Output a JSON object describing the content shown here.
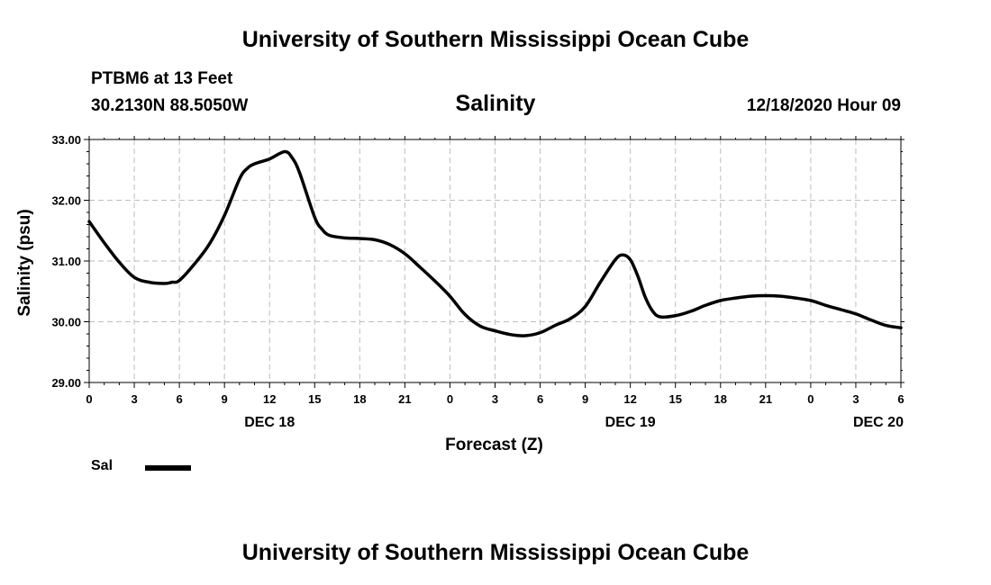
{
  "header": {
    "title": "University of Southern Mississippi Ocean Cube",
    "station": "PTBM6 at 13 Feet",
    "coords": "30.2130N 88.5050W",
    "plot_title": "Salinity",
    "timestamp": "12/18/2020 Hour 09"
  },
  "footer": {
    "title": "University of Southern Mississippi Ocean Cube"
  },
  "legend": {
    "label": "Sal"
  },
  "colors": {
    "line": "#000000",
    "grid": "#bdbdbd"
  },
  "chart_data": {
    "type": "line",
    "title": "Salinity",
    "xlabel": "Forecast (Z)",
    "ylabel": "Salinity (psu)",
    "xlim": [
      0,
      54
    ],
    "ylim": [
      29,
      33
    ],
    "grid": true,
    "x_ticks": [
      0,
      3,
      6,
      9,
      12,
      15,
      18,
      21,
      24,
      27,
      30,
      33,
      36,
      39,
      42,
      45,
      48,
      51,
      54
    ],
    "x_tick_labels": [
      "0",
      "3",
      "6",
      "9",
      "12",
      "15",
      "18",
      "21",
      "0",
      "3",
      "6",
      "9",
      "12",
      "15",
      "18",
      "21",
      "0",
      "3",
      "6"
    ],
    "y_ticks": [
      29,
      30,
      31,
      32,
      33
    ],
    "y_tick_labels": [
      "29.00",
      "30.00",
      "31.00",
      "32.00",
      "33.00"
    ],
    "date_labels": [
      {
        "x": 12,
        "label": "DEC 18"
      },
      {
        "x": 36,
        "label": "DEC 19"
      },
      {
        "x": 52.5,
        "label": "DEC 20"
      }
    ],
    "series": [
      {
        "name": "Sal",
        "x": [
          0,
          1,
          2,
          3,
          4,
          5,
          5.5,
          6,
          7,
          8,
          9,
          10,
          10.5,
          11,
          12,
          13,
          13.5,
          14,
          15,
          15.5,
          16,
          17,
          18,
          19,
          20,
          21,
          22,
          23,
          24,
          25,
          26,
          27,
          28,
          29,
          30,
          31,
          32,
          33,
          34,
          35,
          35.5,
          36,
          36.5,
          37,
          37.5,
          38,
          39,
          40,
          41,
          42,
          43,
          44,
          45,
          46,
          47,
          48,
          49,
          50,
          51,
          52,
          53,
          54
        ],
        "y": [
          31.65,
          31.3,
          30.98,
          30.73,
          30.65,
          30.63,
          30.65,
          30.68,
          30.95,
          31.28,
          31.75,
          32.35,
          32.52,
          32.6,
          32.68,
          32.8,
          32.7,
          32.45,
          31.72,
          31.52,
          31.42,
          31.38,
          31.37,
          31.35,
          31.27,
          31.12,
          30.9,
          30.67,
          30.42,
          30.12,
          29.93,
          29.85,
          29.79,
          29.77,
          29.82,
          29.94,
          30.05,
          30.25,
          30.65,
          31.02,
          31.1,
          31.02,
          30.75,
          30.4,
          30.17,
          30.08,
          30.1,
          30.17,
          30.27,
          30.35,
          30.39,
          30.42,
          30.43,
          30.42,
          30.39,
          30.35,
          30.27,
          30.2,
          30.13,
          30.03,
          29.94,
          29.9
        ]
      }
    ]
  }
}
